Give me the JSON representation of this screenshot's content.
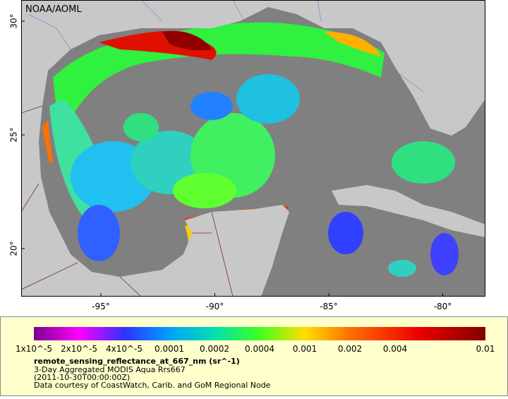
{
  "map": {
    "credit": "NOAA/AOML",
    "lat_labels": [
      "30°",
      "25°",
      "20°"
    ],
    "lon_labels": [
      "-95°",
      "-90°",
      "-85°",
      "-80°"
    ]
  },
  "legend": {
    "colorbar_labels": [
      "1x10^-5",
      "2x10^-5",
      "4x10^-5",
      "0.0001",
      "0.0002",
      "0.0004",
      "0.001",
      "0.002",
      "0.004",
      "0.01"
    ],
    "variable": "remote_sensing_reflectance_at_667_nm (sr^-1)",
    "description": "3-Day Aggregated MODIS Aqua Rrs667",
    "time": "(2011-10-30T00:00:00Z)",
    "source": "Data courtesy of CoastWatch, Carib. and GoM Regional Node"
  }
}
